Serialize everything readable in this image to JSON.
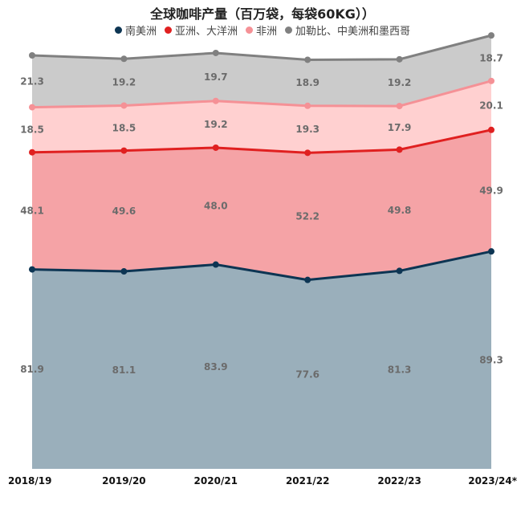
{
  "chart_data": {
    "type": "area",
    "stacked": true,
    "title": "全球咖啡产量（百万袋，每袋60KG））",
    "categories": [
      "2018/19",
      "2019/20",
      "2020/21",
      "2021/22",
      "2022/23",
      "2023/24*"
    ],
    "series": [
      {
        "name": "南美洲",
        "values": [
          81.9,
          81.1,
          83.9,
          77.6,
          81.3,
          89.3
        ],
        "line_color": "#0d3553",
        "fill_color": "#9aafbb"
      },
      {
        "name": "亚洲、大洋洲",
        "values": [
          48.1,
          49.6,
          48.0,
          52.2,
          49.8,
          49.9
        ],
        "line_color": "#e02020",
        "fill_color": "#f5a3a6"
      },
      {
        "name": "非洲",
        "values": [
          18.5,
          18.5,
          19.2,
          19.3,
          17.9,
          20.1
        ],
        "line_color": "#f59196",
        "fill_color": "#ffd0d0"
      },
      {
        "name": "加勒比、中美洲和墨西哥",
        "values": [
          21.3,
          19.2,
          19.7,
          18.9,
          19.2,
          18.7
        ],
        "line_color": "#808080",
        "fill_color": "#cbcbcb"
      }
    ],
    "ylim": [
      0,
      182
    ],
    "grid": false,
    "legend_position": "top"
  }
}
